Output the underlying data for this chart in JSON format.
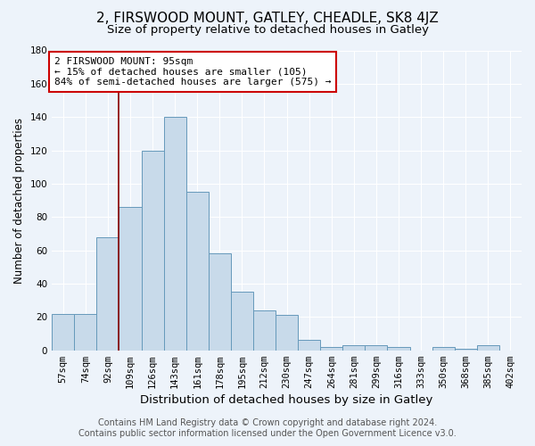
{
  "title": "2, FIRSWOOD MOUNT, GATLEY, CHEADLE, SK8 4JZ",
  "subtitle": "Size of property relative to detached houses in Gatley",
  "xlabel": "Distribution of detached houses by size in Gatley",
  "ylabel": "Number of detached properties",
  "categories": [
    "57sqm",
    "74sqm",
    "92sqm",
    "109sqm",
    "126sqm",
    "143sqm",
    "161sqm",
    "178sqm",
    "195sqm",
    "212sqm",
    "230sqm",
    "247sqm",
    "264sqm",
    "281sqm",
    "299sqm",
    "316sqm",
    "333sqm",
    "350sqm",
    "368sqm",
    "385sqm",
    "402sqm"
  ],
  "values": [
    22,
    22,
    68,
    86,
    120,
    140,
    95,
    58,
    35,
    24,
    21,
    6,
    2,
    3,
    3,
    2,
    0,
    2,
    1,
    3,
    0
  ],
  "bar_color": "#c8daea",
  "bar_edge_color": "#6699bb",
  "background_color": "#edf3fa",
  "grid_color": "#ffffff",
  "red_line_x": 2.5,
  "annotation_line1": "2 FIRSWOOD MOUNT: 95sqm",
  "annotation_line2": "← 15% of detached houses are smaller (105)",
  "annotation_line3": "84% of semi-detached houses are larger (575) →",
  "annotation_box_color": "#ffffff",
  "annotation_box_edge_color": "#cc0000",
  "footer_line1": "Contains HM Land Registry data © Crown copyright and database right 2024.",
  "footer_line2": "Contains public sector information licensed under the Open Government Licence v3.0.",
  "ylim": [
    0,
    180
  ],
  "yticks": [
    0,
    20,
    40,
    60,
    80,
    100,
    120,
    140,
    160,
    180
  ],
  "title_fontsize": 11,
  "subtitle_fontsize": 9.5,
  "xlabel_fontsize": 9.5,
  "ylabel_fontsize": 8.5,
  "tick_fontsize": 7.5,
  "annotation_fontsize": 8,
  "footer_fontsize": 7
}
